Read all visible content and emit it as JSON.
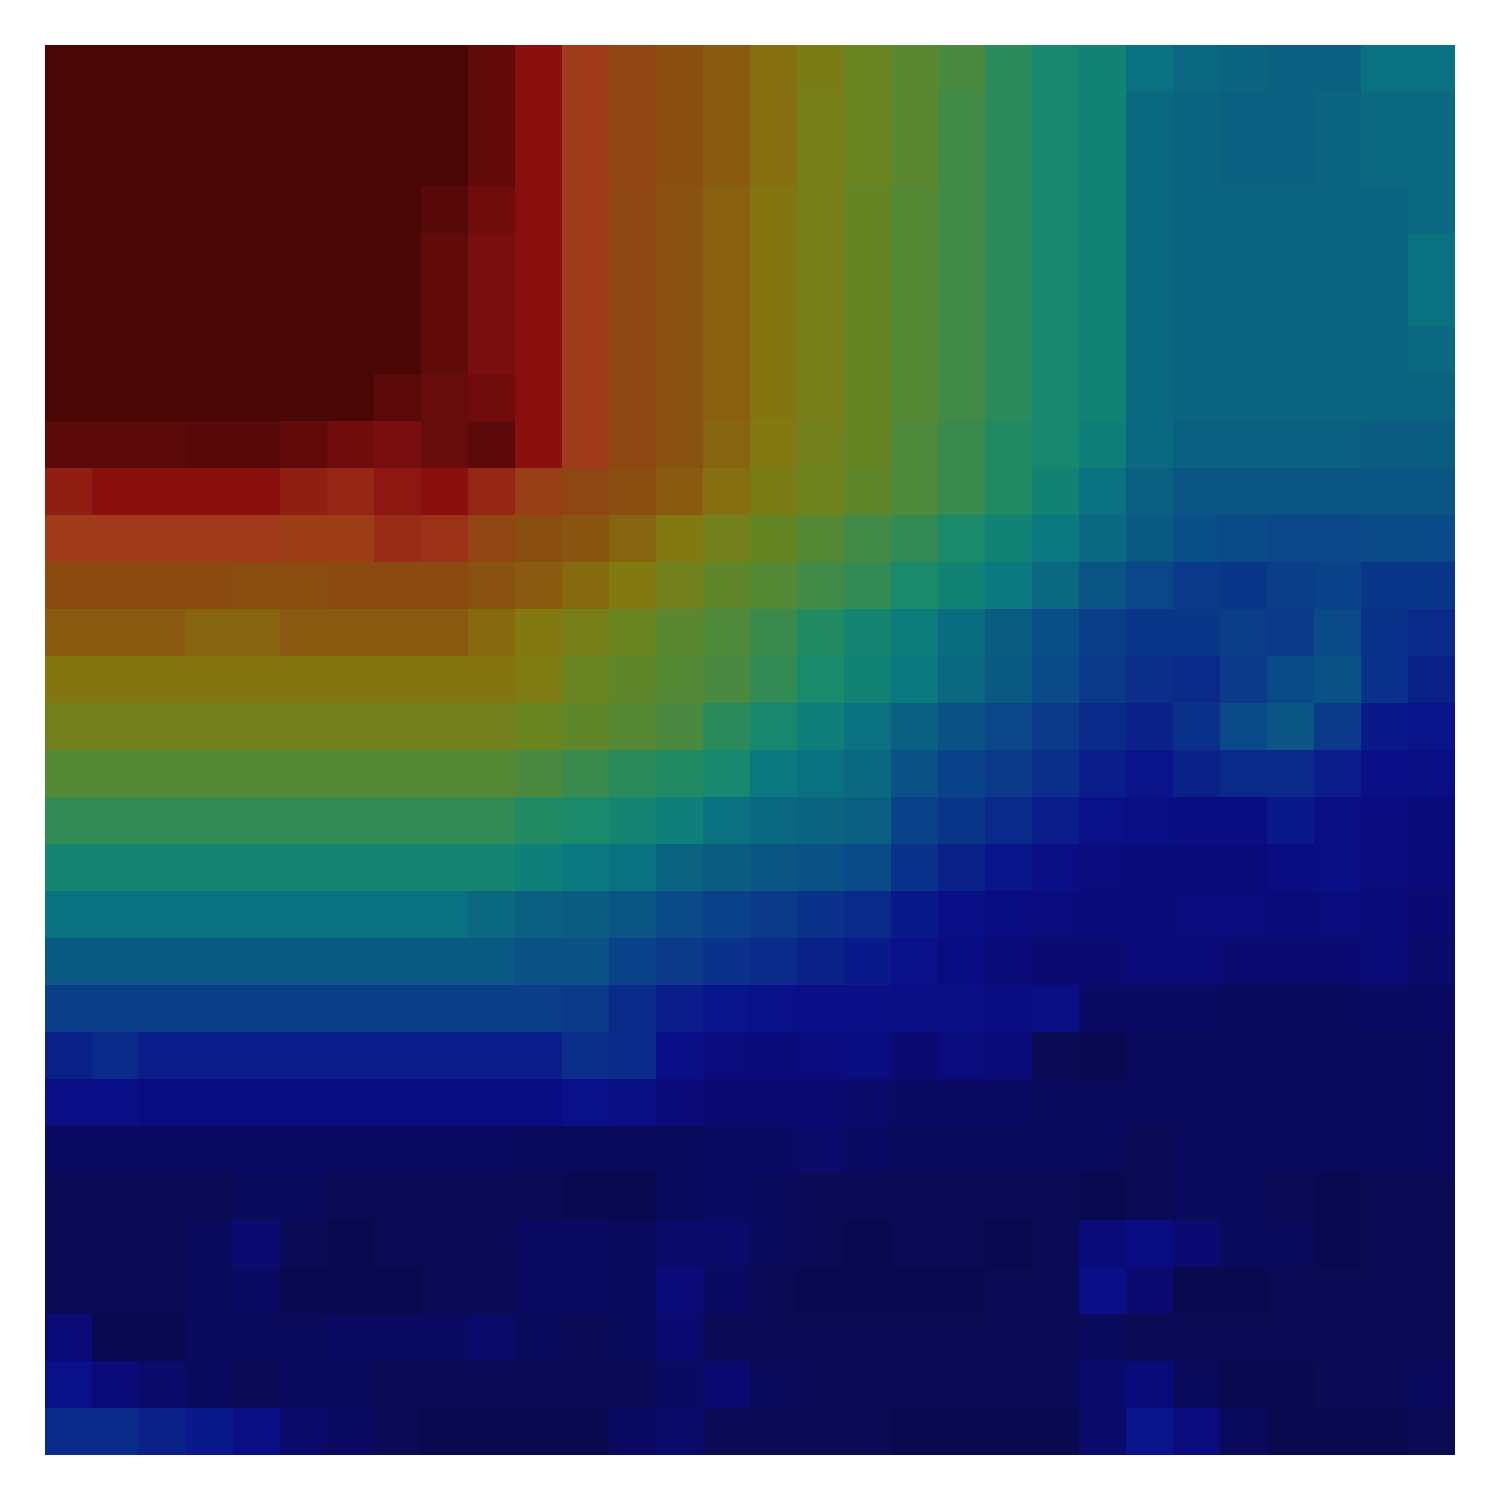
{
  "chart_data": {
    "type": "heatmap",
    "zlim": [
      0,
      1
    ],
    "tick_labels": false,
    "cells": [
      [
        1,
        1,
        1,
        1,
        1,
        1,
        1,
        1,
        1,
        0.95,
        0.9,
        0.84,
        0.8,
        0.76,
        0.72,
        0.68,
        0.64,
        0.6,
        0.57,
        0.54,
        0.5,
        0.47,
        0.45,
        0.4,
        0.38,
        0.37,
        0.36,
        0.36,
        0.4,
        0.4
      ],
      [
        1,
        1,
        1,
        1,
        1,
        1,
        1,
        1,
        1,
        0.95,
        0.9,
        0.84,
        0.8,
        0.76,
        0.72,
        0.68,
        0.63,
        0.6,
        0.57,
        0.53,
        0.5,
        0.47,
        0.45,
        0.38,
        0.37,
        0.36,
        0.36,
        0.37,
        0.38,
        0.38
      ],
      [
        1,
        1,
        1,
        1,
        1,
        1,
        1,
        1,
        1,
        0.95,
        0.9,
        0.84,
        0.8,
        0.76,
        0.72,
        0.68,
        0.63,
        0.6,
        0.57,
        0.53,
        0.5,
        0.47,
        0.45,
        0.38,
        0.37,
        0.36,
        0.36,
        0.37,
        0.38,
        0.38
      ],
      [
        1,
        1,
        1,
        1,
        1,
        1,
        1,
        1,
        0.97,
        0.93,
        0.9,
        0.84,
        0.79,
        0.75,
        0.71,
        0.67,
        0.63,
        0.59,
        0.56,
        0.53,
        0.5,
        0.47,
        0.45,
        0.38,
        0.37,
        0.37,
        0.37,
        0.37,
        0.37,
        0.38
      ],
      [
        1,
        1,
        1,
        1,
        1,
        1,
        1,
        1,
        0.95,
        0.92,
        0.9,
        0.84,
        0.79,
        0.75,
        0.71,
        0.67,
        0.63,
        0.59,
        0.56,
        0.53,
        0.5,
        0.47,
        0.45,
        0.38,
        0.37,
        0.37,
        0.37,
        0.37,
        0.37,
        0.4
      ],
      [
        1,
        1,
        1,
        1,
        1,
        1,
        1,
        1,
        0.95,
        0.92,
        0.9,
        0.84,
        0.79,
        0.75,
        0.71,
        0.67,
        0.63,
        0.59,
        0.56,
        0.53,
        0.5,
        0.47,
        0.45,
        0.38,
        0.37,
        0.37,
        0.37,
        0.37,
        0.37,
        0.4
      ],
      [
        1,
        1,
        1,
        1,
        1,
        1,
        1,
        1,
        0.95,
        0.92,
        0.9,
        0.84,
        0.79,
        0.75,
        0.71,
        0.67,
        0.63,
        0.59,
        0.56,
        0.53,
        0.5,
        0.47,
        0.45,
        0.38,
        0.37,
        0.37,
        0.37,
        0.37,
        0.37,
        0.38
      ],
      [
        1,
        1,
        1,
        1,
        1,
        1,
        1,
        0.96,
        0.94,
        0.93,
        0.9,
        0.84,
        0.79,
        0.75,
        0.71,
        0.67,
        0.63,
        0.59,
        0.56,
        0.53,
        0.5,
        0.47,
        0.45,
        0.38,
        0.37,
        0.37,
        0.37,
        0.37,
        0.37,
        0.37
      ],
      [
        0.96,
        0.96,
        0.96,
        0.97,
        0.97,
        0.95,
        0.93,
        0.92,
        0.94,
        0.96,
        0.9,
        0.84,
        0.79,
        0.75,
        0.7,
        0.66,
        0.62,
        0.59,
        0.55,
        0.52,
        0.49,
        0.47,
        0.44,
        0.38,
        0.36,
        0.36,
        0.36,
        0.36,
        0.35,
        0.35
      ],
      [
        0.88,
        0.9,
        0.9,
        0.9,
        0.9,
        0.88,
        0.87,
        0.89,
        0.9,
        0.87,
        0.82,
        0.79,
        0.76,
        0.72,
        0.68,
        0.64,
        0.61,
        0.58,
        0.55,
        0.52,
        0.49,
        0.45,
        0.4,
        0.36,
        0.33,
        0.33,
        0.33,
        0.33,
        0.33,
        0.33
      ],
      [
        0.84,
        0.84,
        0.84,
        0.84,
        0.84,
        0.83,
        0.83,
        0.86,
        0.85,
        0.8,
        0.77,
        0.74,
        0.7,
        0.66,
        0.62,
        0.59,
        0.56,
        0.53,
        0.51,
        0.48,
        0.45,
        0.42,
        0.38,
        0.34,
        0.31,
        0.3,
        0.29,
        0.29,
        0.3,
        0.3
      ],
      [
        0.78,
        0.78,
        0.78,
        0.78,
        0.77,
        0.77,
        0.78,
        0.78,
        0.78,
        0.75,
        0.72,
        0.69,
        0.66,
        0.62,
        0.58,
        0.56,
        0.53,
        0.51,
        0.48,
        0.45,
        0.42,
        0.38,
        0.33,
        0.29,
        0.26,
        0.25,
        0.27,
        0.28,
        0.25,
        0.25
      ],
      [
        0.72,
        0.72,
        0.72,
        0.7,
        0.7,
        0.72,
        0.72,
        0.72,
        0.72,
        0.69,
        0.66,
        0.63,
        0.6,
        0.57,
        0.55,
        0.52,
        0.49,
        0.46,
        0.43,
        0.39,
        0.35,
        0.31,
        0.27,
        0.25,
        0.25,
        0.27,
        0.26,
        0.3,
        0.24,
        0.22
      ],
      [
        0.67,
        0.67,
        0.67,
        0.67,
        0.67,
        0.67,
        0.67,
        0.67,
        0.67,
        0.67,
        0.65,
        0.6,
        0.58,
        0.56,
        0.54,
        0.51,
        0.48,
        0.45,
        0.42,
        0.38,
        0.34,
        0.3,
        0.26,
        0.23,
        0.22,
        0.26,
        0.3,
        0.32,
        0.24,
        0.2
      ],
      [
        0.62,
        0.62,
        0.62,
        0.62,
        0.62,
        0.62,
        0.62,
        0.62,
        0.62,
        0.62,
        0.6,
        0.58,
        0.56,
        0.54,
        0.5,
        0.47,
        0.44,
        0.4,
        0.36,
        0.32,
        0.29,
        0.26,
        0.22,
        0.2,
        0.24,
        0.3,
        0.33,
        0.26,
        0.18,
        0.17
      ],
      [
        0.56,
        0.56,
        0.56,
        0.56,
        0.56,
        0.56,
        0.56,
        0.56,
        0.56,
        0.56,
        0.54,
        0.52,
        0.5,
        0.49,
        0.47,
        0.42,
        0.4,
        0.38,
        0.32,
        0.28,
        0.26,
        0.23,
        0.19,
        0.17,
        0.2,
        0.22,
        0.22,
        0.19,
        0.15,
        0.14
      ],
      [
        0.51,
        0.51,
        0.51,
        0.51,
        0.51,
        0.51,
        0.51,
        0.51,
        0.51,
        0.51,
        0.49,
        0.48,
        0.46,
        0.44,
        0.4,
        0.38,
        0.37,
        0.36,
        0.28,
        0.25,
        0.22,
        0.19,
        0.16,
        0.14,
        0.13,
        0.13,
        0.18,
        0.14,
        0.12,
        0.11
      ],
      [
        0.46,
        0.46,
        0.46,
        0.46,
        0.46,
        0.46,
        0.46,
        0.46,
        0.46,
        0.46,
        0.44,
        0.42,
        0.4,
        0.37,
        0.35,
        0.33,
        0.32,
        0.3,
        0.24,
        0.2,
        0.17,
        0.14,
        0.12,
        0.11,
        0.11,
        0.11,
        0.13,
        0.14,
        0.12,
        0.1
      ],
      [
        0.4,
        0.4,
        0.4,
        0.4,
        0.4,
        0.4,
        0.4,
        0.4,
        0.4,
        0.38,
        0.36,
        0.35,
        0.33,
        0.3,
        0.28,
        0.26,
        0.24,
        0.22,
        0.18,
        0.15,
        0.13,
        0.12,
        0.11,
        0.11,
        0.12,
        0.12,
        0.11,
        0.12,
        0.1,
        0.09
      ],
      [
        0.34,
        0.34,
        0.34,
        0.34,
        0.34,
        0.34,
        0.34,
        0.34,
        0.34,
        0.34,
        0.32,
        0.32,
        0.28,
        0.26,
        0.24,
        0.22,
        0.2,
        0.18,
        0.16,
        0.13,
        0.1,
        0.09,
        0.09,
        0.1,
        0.1,
        0.09,
        0.09,
        0.09,
        0.1,
        0.08
      ],
      [
        0.27,
        0.27,
        0.27,
        0.27,
        0.27,
        0.27,
        0.27,
        0.27,
        0.27,
        0.27,
        0.27,
        0.26,
        0.22,
        0.19,
        0.17,
        0.16,
        0.15,
        0.15,
        0.14,
        0.14,
        0.13,
        0.14,
        0.07,
        0.07,
        0.07,
        0.06,
        0.06,
        0.06,
        0.07,
        0.07
      ],
      [
        0.2,
        0.22,
        0.19,
        0.19,
        0.19,
        0.19,
        0.19,
        0.19,
        0.19,
        0.19,
        0.19,
        0.23,
        0.22,
        0.15,
        0.12,
        0.11,
        0.12,
        0.13,
        0.09,
        0.12,
        0.1,
        0.05,
        0.04,
        0.06,
        0.06,
        0.06,
        0.06,
        0.06,
        0.06,
        0.06
      ],
      [
        0.15,
        0.15,
        0.13,
        0.13,
        0.13,
        0.13,
        0.13,
        0.13,
        0.13,
        0.13,
        0.13,
        0.16,
        0.14,
        0.1,
        0.09,
        0.09,
        0.09,
        0.08,
        0.07,
        0.07,
        0.07,
        0.06,
        0.06,
        0.06,
        0.06,
        0.06,
        0.06,
        0.06,
        0.06,
        0.06
      ],
      [
        0.07,
        0.07,
        0.07,
        0.07,
        0.07,
        0.07,
        0.07,
        0.07,
        0.07,
        0.07,
        0.06,
        0.06,
        0.06,
        0.06,
        0.07,
        0.07,
        0.08,
        0.07,
        0.06,
        0.06,
        0.06,
        0.06,
        0.06,
        0.05,
        0.06,
        0.06,
        0.06,
        0.06,
        0.06,
        0.06
      ],
      [
        0.05,
        0.05,
        0.05,
        0.05,
        0.06,
        0.06,
        0.05,
        0.05,
        0.05,
        0.05,
        0.05,
        0.04,
        0.04,
        0.06,
        0.07,
        0.06,
        0.05,
        0.05,
        0.05,
        0.05,
        0.05,
        0.05,
        0.04,
        0.05,
        0.06,
        0.06,
        0.05,
        0.04,
        0.05,
        0.05
      ],
      [
        0.05,
        0.05,
        0.05,
        0.06,
        0.09,
        0.05,
        0.04,
        0.05,
        0.05,
        0.05,
        0.07,
        0.07,
        0.06,
        0.08,
        0.08,
        0.06,
        0.05,
        0.04,
        0.05,
        0.05,
        0.04,
        0.05,
        0.1,
        0.13,
        0.09,
        0.06,
        0.06,
        0.04,
        0.05,
        0.05
      ],
      [
        0.05,
        0.05,
        0.05,
        0.06,
        0.07,
        0.04,
        0.04,
        0.04,
        0.05,
        0.05,
        0.07,
        0.07,
        0.06,
        0.1,
        0.07,
        0.05,
        0.04,
        0.04,
        0.04,
        0.04,
        0.05,
        0.05,
        0.15,
        0.09,
        0.04,
        0.04,
        0.05,
        0.05,
        0.05,
        0.05
      ],
      [
        0.1,
        0.04,
        0.04,
        0.06,
        0.06,
        0.06,
        0.07,
        0.07,
        0.07,
        0.08,
        0.06,
        0.05,
        0.06,
        0.09,
        0.05,
        0.05,
        0.05,
        0.05,
        0.05,
        0.05,
        0.05,
        0.05,
        0.06,
        0.05,
        0.05,
        0.05,
        0.05,
        0.05,
        0.05,
        0.05
      ],
      [
        0.16,
        0.1,
        0.08,
        0.06,
        0.05,
        0.06,
        0.06,
        0.05,
        0.05,
        0.05,
        0.05,
        0.05,
        0.05,
        0.07,
        0.09,
        0.06,
        0.05,
        0.05,
        0.05,
        0.05,
        0.05,
        0.05,
        0.08,
        0.11,
        0.06,
        0.04,
        0.04,
        0.05,
        0.05,
        0.06
      ],
      [
        0.22,
        0.22,
        0.2,
        0.18,
        0.14,
        0.08,
        0.07,
        0.05,
        0.04,
        0.04,
        0.04,
        0.04,
        0.07,
        0.08,
        0.05,
        0.05,
        0.05,
        0.05,
        0.04,
        0.04,
        0.04,
        0.04,
        0.08,
        0.17,
        0.12,
        0.06,
        0.04,
        0.04,
        0.04,
        0.05
      ]
    ]
  }
}
